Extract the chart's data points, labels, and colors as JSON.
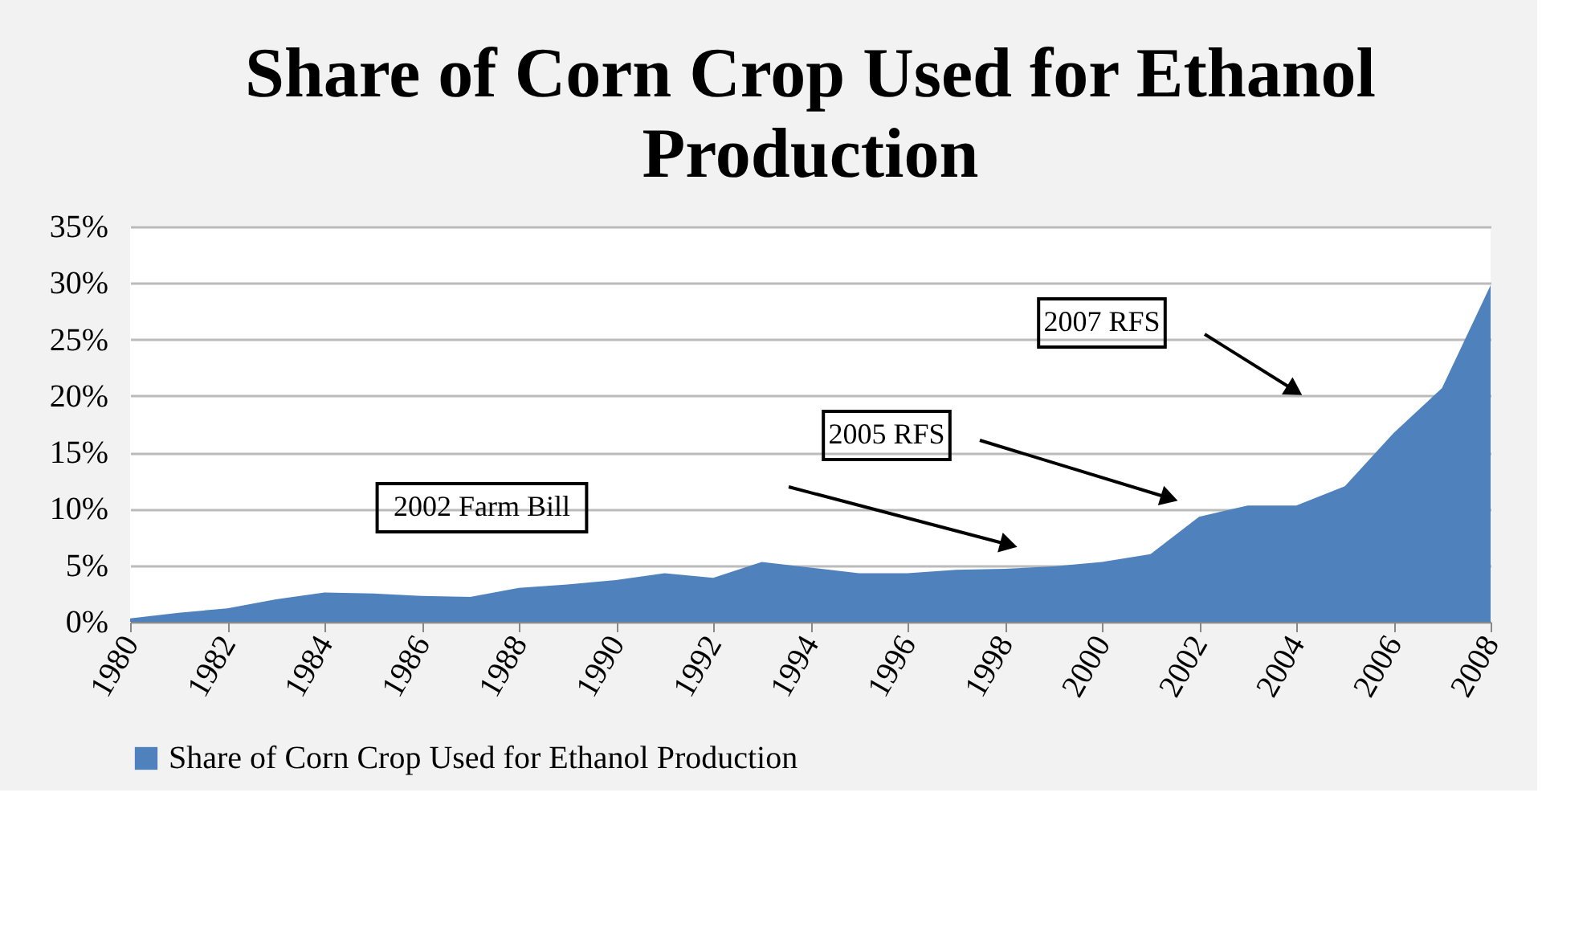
{
  "chart_data": {
    "type": "area",
    "title": "Share of Corn Crop Used for Ethanol Production",
    "x": [
      1980,
      1981,
      1982,
      1983,
      1984,
      1985,
      1986,
      1987,
      1988,
      1989,
      1990,
      1991,
      1992,
      1993,
      1994,
      1995,
      1996,
      1997,
      1998,
      1999,
      2000,
      2001,
      2002,
      2003,
      2004,
      2005,
      2006,
      2007,
      2008
    ],
    "series": [
      {
        "name": "Share of Corn Crop Used for Ethanol Production",
        "color": "#4f81bd",
        "values": [
          0.3,
          0.8,
          1.2,
          2.0,
          2.6,
          2.5,
          2.3,
          2.2,
          3.0,
          3.3,
          3.7,
          4.3,
          3.9,
          5.3,
          4.8,
          4.3,
          4.3,
          4.6,
          4.7,
          4.9,
          5.3,
          6.0,
          9.3,
          10.3,
          10.3,
          12.0,
          16.7,
          20.7,
          29.8
        ]
      }
    ],
    "xlim": [
      1980,
      2008
    ],
    "xticks": [
      1980,
      1982,
      1984,
      1986,
      1988,
      1990,
      1992,
      1994,
      1996,
      1998,
      2000,
      2002,
      2004,
      2006,
      2008
    ],
    "ylim": [
      0,
      35
    ],
    "yticks": [
      {
        "value": 0,
        "label": "0%"
      },
      {
        "value": 5,
        "label": "5%"
      },
      {
        "value": 10,
        "label": "10%"
      },
      {
        "value": 15,
        "label": "15%"
      },
      {
        "value": 20,
        "label": "20%"
      },
      {
        "value": 25,
        "label": "25%"
      },
      {
        "value": 30,
        "label": "30%"
      },
      {
        "value": 35,
        "label": "35%"
      }
    ],
    "grid": "y",
    "legend": "bottom",
    "annotations": [
      "2002 Farm Bill",
      "2005 RFS",
      "2007 RFS"
    ]
  }
}
